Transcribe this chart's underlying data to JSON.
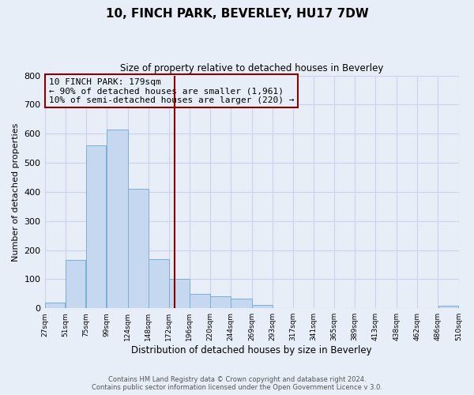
{
  "title": "10, FINCH PARK, BEVERLEY, HU17 7DW",
  "subtitle": "Size of property relative to detached houses in Beverley",
  "xlabel": "Distribution of detached houses by size in Beverley",
  "ylabel": "Number of detached properties",
  "bar_left_edges": [
    27,
    51,
    75,
    99,
    124,
    148,
    172,
    196,
    220,
    244,
    269,
    293,
    317,
    341,
    365,
    389,
    413,
    438,
    462,
    486
  ],
  "bar_heights": [
    20,
    165,
    560,
    615,
    410,
    170,
    100,
    50,
    40,
    33,
    12,
    0,
    0,
    0,
    0,
    0,
    0,
    0,
    0,
    8
  ],
  "bar_widths": [
    24,
    24,
    24,
    25,
    24,
    24,
    24,
    24,
    24,
    25,
    24,
    24,
    24,
    24,
    24,
    24,
    25,
    24,
    24,
    24
  ],
  "bar_color": "#c5d8f0",
  "bar_edgecolor": "#7bafd4",
  "xlim": [
    27,
    510
  ],
  "ylim": [
    0,
    800
  ],
  "yticks": [
    0,
    100,
    200,
    300,
    400,
    500,
    600,
    700,
    800
  ],
  "xtick_labels": [
    "27sqm",
    "51sqm",
    "75sqm",
    "99sqm",
    "124sqm",
    "148sqm",
    "172sqm",
    "196sqm",
    "220sqm",
    "244sqm",
    "269sqm",
    "293sqm",
    "317sqm",
    "341sqm",
    "365sqm",
    "389sqm",
    "413sqm",
    "438sqm",
    "462sqm",
    "486sqm",
    "510sqm"
  ],
  "xtick_positions": [
    27,
    51,
    75,
    99,
    124,
    148,
    172,
    196,
    220,
    244,
    269,
    293,
    317,
    341,
    365,
    389,
    413,
    438,
    462,
    486,
    510
  ],
  "vline_x": 179,
  "vline_color": "#8b0000",
  "annotation_title": "10 FINCH PARK: 179sqm",
  "annotation_line1": "← 90% of detached houses are smaller (1,961)",
  "annotation_line2": "10% of semi-detached houses are larger (220) →",
  "annotation_box_color": "#8b0000",
  "grid_color": "#c8d4e8",
  "background_color": "#e8eef8",
  "footer1": "Contains HM Land Registry data © Crown copyright and database right 2024.",
  "footer2": "Contains public sector information licensed under the Open Government Licence v 3.0."
}
